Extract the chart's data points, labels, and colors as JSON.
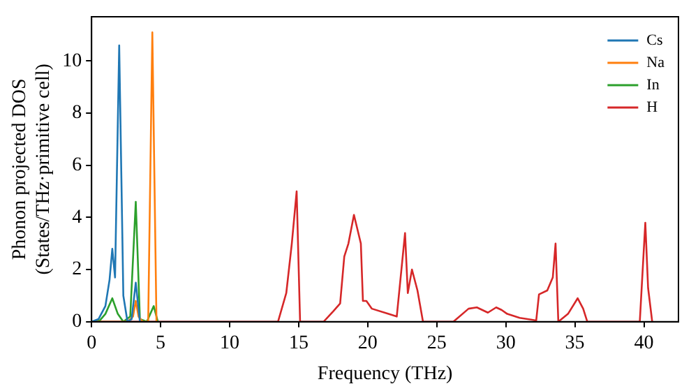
{
  "chart_data": {
    "type": "line",
    "xlabel": "Frequency (THz)",
    "ylabel": [
      "Phonon projected DOS",
      "(States/THz·primitive cell)"
    ],
    "xlim": [
      0,
      42.5
    ],
    "ylim": [
      0,
      11.7
    ],
    "xticks": [
      0,
      5,
      10,
      15,
      20,
      25,
      30,
      35,
      40
    ],
    "yticks": [
      0,
      2,
      4,
      6,
      8,
      10
    ],
    "grid": false,
    "legend": "top right",
    "marker": "none",
    "line_style": "solid",
    "series": [
      {
        "name": "Cs",
        "color": "#1f77b4",
        "x": [
          0,
          0.5,
          1.0,
          1.3,
          1.5,
          1.7,
          2.0,
          2.3,
          2.6,
          2.9,
          3.2,
          3.5
        ],
        "values": [
          0,
          0.1,
          0.6,
          1.6,
          2.8,
          1.7,
          10.6,
          1.0,
          0,
          0.1,
          1.5,
          0
        ]
      },
      {
        "name": "Na",
        "color": "#ff7f0e",
        "x": [
          0,
          2.6,
          3.0,
          3.2,
          3.4,
          3.7,
          4.1,
          4.4,
          4.7
        ],
        "values": [
          0,
          0,
          0.2,
          0.8,
          0.2,
          0,
          0,
          11.1,
          0
        ]
      },
      {
        "name": "In",
        "color": "#2ca02c",
        "x": [
          0,
          0.6,
          1.0,
          1.5,
          1.9,
          2.3,
          2.8,
          3.2,
          3.5,
          4.0,
          4.5,
          4.8
        ],
        "values": [
          0,
          0.05,
          0.3,
          0.9,
          0.3,
          0,
          0.2,
          4.6,
          0.1,
          0,
          0.6,
          0
        ]
      },
      {
        "name": "H",
        "color": "#d62728",
        "x": [
          0,
          13.5,
          14.1,
          14.5,
          14.85,
          15.1,
          16.8,
          17.5,
          18.0,
          18.3,
          18.6,
          19.0,
          19.5,
          19.65,
          19.9,
          20.3,
          21.5,
          22.1,
          22.7,
          22.9,
          23.2,
          23.6,
          24.0,
          26.2,
          27.3,
          27.9,
          28.7,
          29.3,
          29.7,
          30.1,
          31,
          32.2,
          32.4,
          33.0,
          33.4,
          33.6,
          33.8,
          34.5,
          35.2,
          35.6,
          35.9,
          39.7,
          40.1,
          40.3,
          40.6
        ],
        "values": [
          0,
          0,
          1.1,
          3.0,
          5.0,
          0,
          0,
          0.4,
          0.7,
          2.5,
          3.0,
          4.1,
          3.0,
          0.8,
          0.8,
          0.5,
          0.3,
          0.2,
          3.4,
          1.1,
          2.0,
          1.2,
          0,
          0,
          0.5,
          0.55,
          0.35,
          0.55,
          0.45,
          0.3,
          0.15,
          0.05,
          1.05,
          1.2,
          1.7,
          3.0,
          0,
          0.3,
          0.9,
          0.5,
          0,
          0,
          3.8,
          1.3,
          0
        ]
      }
    ]
  }
}
